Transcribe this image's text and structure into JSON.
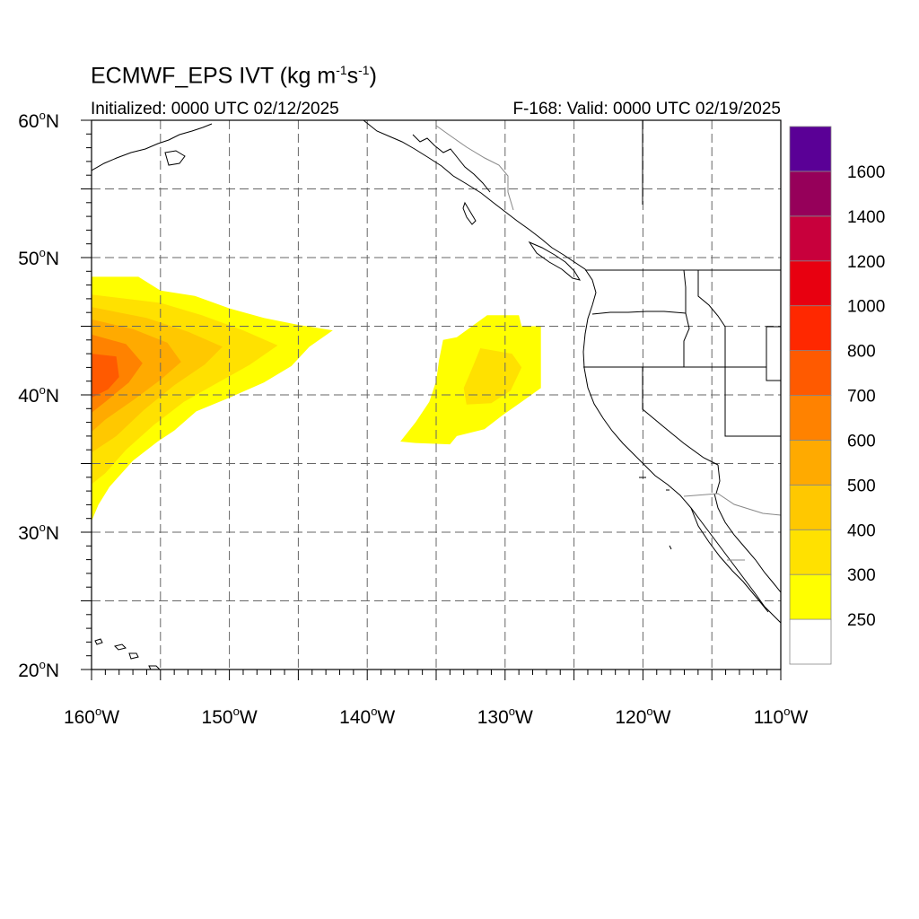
{
  "header": {
    "title_prefix": "ECMWF_EPS IVT (kg m",
    "title_exp1": "-1",
    "title_mid": "s",
    "title_exp2": "-1",
    "title_suffix": ")",
    "initialized": "Initialized: 0000 UTC 02/12/2025",
    "valid": "F-168: Valid: 0000 UTC 02/19/2025"
  },
  "map": {
    "projection": "cylindrical-equidistant",
    "lon_range": [
      -160,
      -110
    ],
    "lat_range": [
      20,
      60
    ],
    "grid": true,
    "lat_ticks": [
      {
        "value": 60,
        "label": "60"
      },
      {
        "value": 50,
        "label": "50"
      },
      {
        "value": 40,
        "label": "40"
      },
      {
        "value": 30,
        "label": "30"
      },
      {
        "value": 20,
        "label": "20"
      }
    ],
    "lon_ticks": [
      {
        "value": -160,
        "label": "160"
      },
      {
        "value": -150,
        "label": "150"
      },
      {
        "value": -140,
        "label": "140"
      },
      {
        "value": -130,
        "label": "130"
      },
      {
        "value": -120,
        "label": "120"
      },
      {
        "value": -110,
        "label": "110"
      }
    ],
    "lat_suffix": "N",
    "lon_suffix": "W",
    "plumes": [
      {
        "name": "western-plume",
        "outline": [
          [
            -160,
            48.6
          ],
          [
            -156.6,
            48.6
          ],
          [
            -155,
            47.6
          ],
          [
            -152.5,
            47.2
          ],
          [
            -150,
            46.3
          ],
          [
            -147.5,
            45.6
          ],
          [
            -145,
            45.1
          ],
          [
            -142.5,
            44.7
          ],
          [
            -144.2,
            43.5
          ],
          [
            -145.5,
            42.1
          ],
          [
            -147.5,
            40.9
          ],
          [
            -150,
            39.8
          ],
          [
            -152.4,
            38.8
          ],
          [
            -154,
            37.4
          ],
          [
            -155.2,
            36.6
          ],
          [
            -157,
            35.2
          ],
          [
            -158.7,
            33.3
          ],
          [
            -159.5,
            32.0
          ],
          [
            -160,
            30.8
          ]
        ],
        "levels": [
          {
            "value": 300,
            "outline": [
              [
                -160,
                47.3
              ],
              [
                -155,
                46.7
              ],
              [
                -152,
                45.8
              ],
              [
                -149,
                44.7
              ],
              [
                -146.5,
                43.6
              ],
              [
                -148.5,
                42.2
              ],
              [
                -151,
                40.8
              ],
              [
                -153.3,
                39.5
              ],
              [
                -155.5,
                37.8
              ],
              [
                -157.5,
                36.0
              ],
              [
                -159,
                34.3
              ],
              [
                -160,
                33.5
              ]
            ]
          },
          {
            "value": 400,
            "outline": [
              [
                -160,
                46.4
              ],
              [
                -156,
                45.6
              ],
              [
                -153,
                44.6
              ],
              [
                -150.5,
                43.5
              ],
              [
                -151.8,
                42.2
              ],
              [
                -154,
                40.7
              ],
              [
                -156.2,
                38.9
              ],
              [
                -158.2,
                37.0
              ],
              [
                -160,
                35.8
              ]
            ]
          },
          {
            "value": 500,
            "outline": [
              [
                -160,
                45.5
              ],
              [
                -157,
                44.8
              ],
              [
                -154.5,
                43.8
              ],
              [
                -153.5,
                42.4
              ],
              [
                -155,
                41.1
              ],
              [
                -157,
                39.6
              ],
              [
                -159,
                38.2
              ],
              [
                -160,
                37.3
              ]
            ]
          },
          {
            "value": 600,
            "outline": [
              [
                -160,
                44.4
              ],
              [
                -157.5,
                43.7
              ],
              [
                -156.3,
                42.3
              ],
              [
                -157.3,
                40.9
              ],
              [
                -159,
                39.5
              ],
              [
                -160,
                38.7
              ]
            ]
          },
          {
            "value": 700,
            "outline": [
              [
                -160,
                43.0
              ],
              [
                -158.2,
                42.8
              ],
              [
                -158,
                41.3
              ],
              [
                -158.8,
                40.4
              ],
              [
                -160,
                39.8
              ]
            ]
          }
        ]
      },
      {
        "name": "eastern-plume",
        "outline": [
          [
            -131.3,
            45.8
          ],
          [
            -129,
            45.8
          ],
          [
            -128.8,
            45.0
          ],
          [
            -127.4,
            45.0
          ],
          [
            -127.4,
            40.5
          ],
          [
            -128.8,
            39.5
          ],
          [
            -130.2,
            38.5
          ],
          [
            -131.5,
            37.5
          ],
          [
            -133.5,
            37.0
          ],
          [
            -134,
            36.4
          ],
          [
            -136.5,
            36.5
          ],
          [
            -137.6,
            36.6
          ],
          [
            -136.5,
            38.0
          ],
          [
            -135.5,
            39.5
          ],
          [
            -135,
            41.0
          ],
          [
            -134.8,
            42.5
          ],
          [
            -134.5,
            44.0
          ],
          [
            -133.5,
            44.2
          ]
        ],
        "levels": [
          {
            "value": 300,
            "outline": [
              [
                -131.8,
                43.4
              ],
              [
                -129.5,
                43.0
              ],
              [
                -128.8,
                42.0
              ],
              [
                -129.6,
                40.3
              ],
              [
                -131.0,
                39.4
              ],
              [
                -132.8,
                39.3
              ],
              [
                -133,
                40.5
              ],
              [
                -132.4,
                41.9
              ]
            ]
          }
        ]
      }
    ]
  },
  "colorbar": {
    "labels": [
      "250",
      "300",
      "400",
      "500",
      "600",
      "700",
      "800",
      "1000",
      "1200",
      "1400",
      "1600"
    ],
    "colors": [
      "#ffffff",
      "#ffff00",
      "#ffe100",
      "#ffc800",
      "#ffaa00",
      "#ff8200",
      "#ff5a00",
      "#ff2800",
      "#e80010",
      "#c8003c",
      "#96005a",
      "#5a0096"
    ]
  }
}
